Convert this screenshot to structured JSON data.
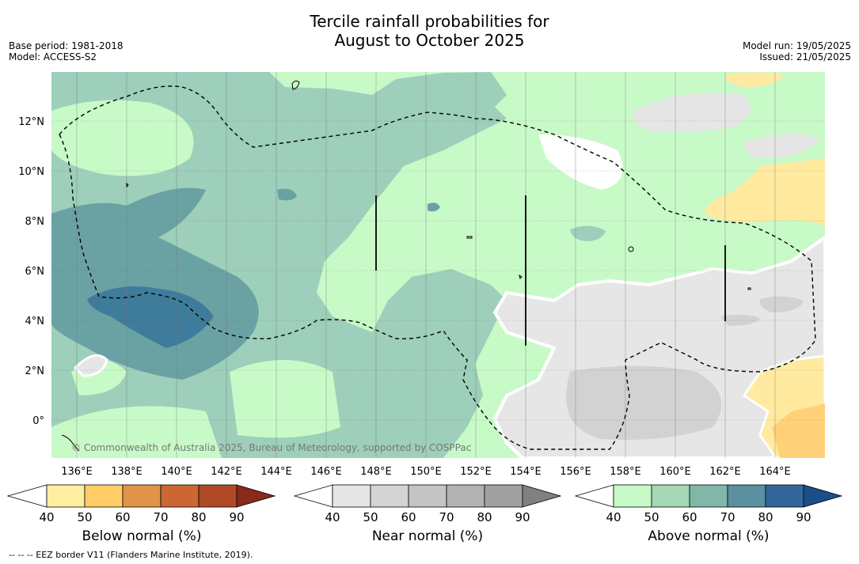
{
  "header": {
    "title_line1": "Tercile rainfall probabilities for",
    "title_line2": "August to October 2025",
    "base_period": "Base period: 1981-2018",
    "model": "Model: ACCESS-S2",
    "model_run": "Model run: 19/05/2025",
    "issued": "Issued: 21/05/2025"
  },
  "map": {
    "copyright": "© Commonwealth of Australia 2025, Bureau of Meteorology, supported by COSPPac",
    "lat_labels": [
      "12°N",
      "10°N",
      "8°N",
      "6°N",
      "4°N",
      "2°N",
      "0°"
    ],
    "lon_labels": [
      "136°E",
      "138°E",
      "140°E",
      "142°E",
      "144°E",
      "146°E",
      "148°E",
      "150°E",
      "152°E",
      "154°E",
      "156°E",
      "158°E",
      "160°E",
      "162°E",
      "164°E"
    ],
    "colors": {
      "near_normal_fill": "#c8fac8",
      "above_50": "#9dcfba",
      "above_60": "#6aa2a4",
      "above_70": "#3f7b9a",
      "below_50": "#ffeaa0",
      "below_60": "#ffd27a",
      "near_40": "#e6e6e6",
      "near_50": "#d2d2d2"
    }
  },
  "colorbars": [
    {
      "title": "Below normal (%)",
      "ticks": [
        "40",
        "50",
        "60",
        "70",
        "80",
        "90"
      ],
      "colors": [
        "#ffeea0",
        "#ffcc66",
        "#e0944a",
        "#cc6633",
        "#b04a26",
        "#8a2a1a"
      ]
    },
    {
      "title": "Near normal (%)",
      "ticks": [
        "40",
        "50",
        "60",
        "70",
        "80",
        "90"
      ],
      "colors": [
        "#e6e6e6",
        "#d4d4d4",
        "#c4c4c4",
        "#b2b2b2",
        "#a0a0a0",
        "#808080"
      ]
    },
    {
      "title": "Above normal (%)",
      "ticks": [
        "40",
        "50",
        "60",
        "70",
        "80",
        "90"
      ],
      "colors": [
        "#c8fac8",
        "#a4d8b6",
        "#82b6a8",
        "#5a90a0",
        "#336699",
        "#1a4f8a"
      ]
    }
  ],
  "footer": {
    "legend_note": "-- -- -- EEZ border V11 (Flanders Marine Institute, 2019)."
  }
}
